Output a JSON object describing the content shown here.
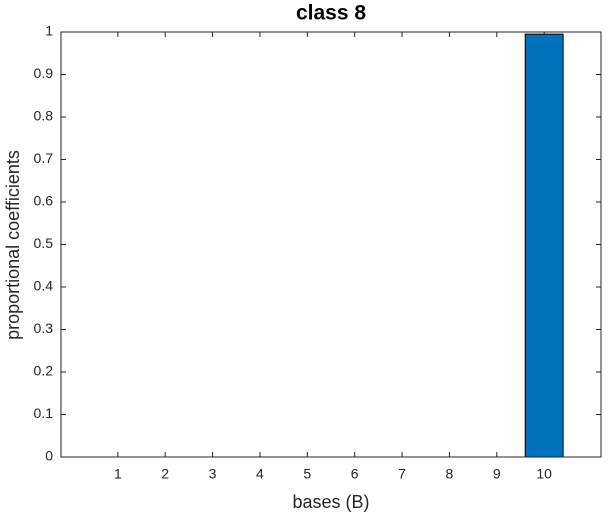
{
  "chart_data": {
    "type": "bar",
    "title": "class 8",
    "xlabel": "bases (B)",
    "ylabel": "proportional coefficients",
    "x": [
      1,
      2,
      3,
      4,
      5,
      6,
      7,
      8,
      9,
      10
    ],
    "values": [
      0,
      0,
      0,
      0,
      0,
      0,
      0,
      0,
      0,
      0.995
    ],
    "color": "#0072bd",
    "xlim": [
      -0.2,
      11.2
    ],
    "xticks": [
      1,
      2,
      3,
      4,
      5,
      6,
      7,
      8,
      9,
      10
    ],
    "ylim": [
      0,
      1
    ],
    "yticks": [
      0,
      0.1,
      0.2,
      0.3,
      0.4,
      0.5,
      0.6,
      0.7,
      0.8,
      0.9,
      1
    ],
    "grid": false
  }
}
